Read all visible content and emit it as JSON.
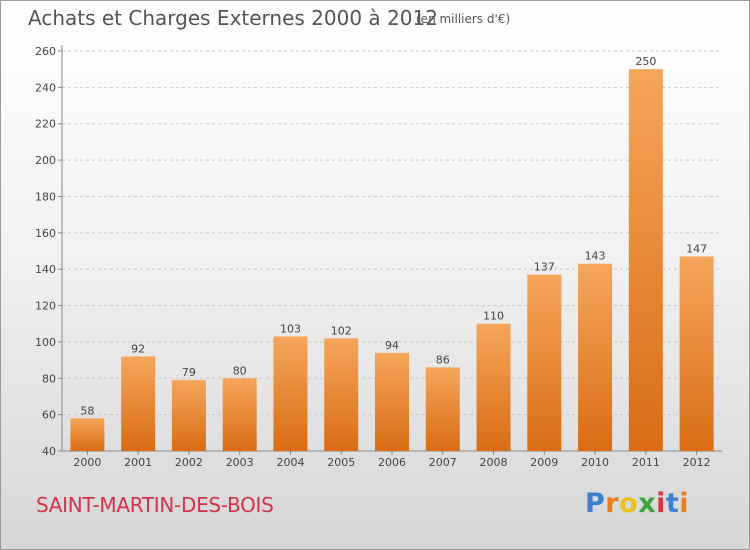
{
  "header": {
    "title": "Achats et Charges Externes 2000 à 2012",
    "unit": "(en milliers d'€)"
  },
  "footer": {
    "town": "SAINT-MARTIN-DES-BOIS",
    "logo_letters": [
      "P",
      "r",
      "o",
      "x",
      "i",
      "t",
      "i"
    ],
    "logo_colors": [
      "#3f7fcf",
      "#e8801d",
      "#e8c21d",
      "#3ca43c",
      "#d6343c",
      "#3f7fcf",
      "#e8801d"
    ]
  },
  "chart_data": {
    "type": "bar",
    "title": "Achats et Charges Externes 2000 à 2012",
    "subtitle": "(en milliers d'€)",
    "categories": [
      "2000",
      "2001",
      "2002",
      "2003",
      "2004",
      "2005",
      "2006",
      "2007",
      "2008",
      "2009",
      "2010",
      "2011",
      "2012"
    ],
    "values": [
      58,
      92,
      79,
      80,
      103,
      102,
      94,
      86,
      110,
      137,
      143,
      250,
      147
    ],
    "xlabel": "",
    "ylabel": "",
    "ylim": [
      40,
      260
    ],
    "yticks": [
      40,
      60,
      80,
      100,
      120,
      140,
      160,
      180,
      200,
      220,
      240,
      260
    ],
    "grid": true,
    "bar_color_top": "#f5a65a",
    "bar_color_bottom": "#d96c14"
  }
}
